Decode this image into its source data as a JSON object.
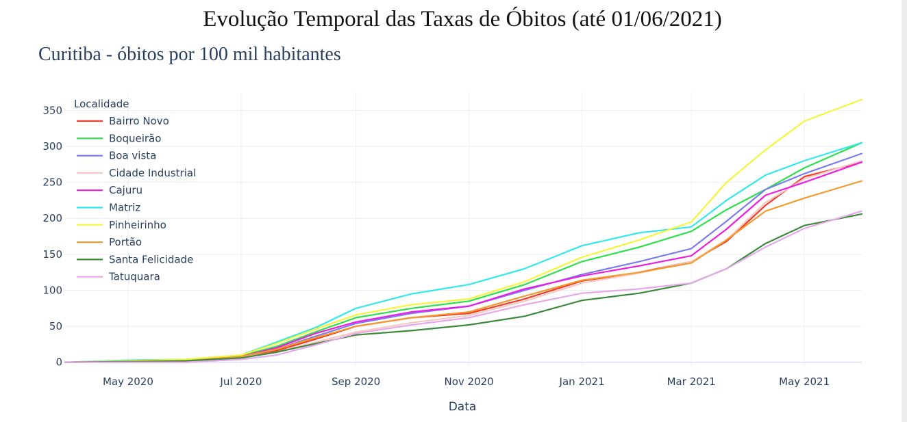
{
  "page": {
    "title": "Evolução Temporal das Taxas de Óbitos (até 01/06/2021)"
  },
  "chart_data": {
    "type": "line",
    "title": "Curitiba - óbitos por 100 mil habitantes",
    "xlabel": "Data",
    "ylabel": "",
    "x_range": [
      "2020-03-28",
      "2021-06-01"
    ],
    "ylim": [
      -5,
      375
    ],
    "x_ticks": [
      {
        "date": "2020-05-01",
        "label": "May 2020"
      },
      {
        "date": "2020-07-01",
        "label": "Jul 2020"
      },
      {
        "date": "2020-09-01",
        "label": "Sep 2020"
      },
      {
        "date": "2020-11-01",
        "label": "Nov 2020"
      },
      {
        "date": "2021-01-01",
        "label": "Jan 2021"
      },
      {
        "date": "2021-03-01",
        "label": "Mar 2021"
      },
      {
        "date": "2021-05-01",
        "label": "May 2021"
      }
    ],
    "y_ticks": [
      0,
      50,
      100,
      150,
      200,
      250,
      300,
      350
    ],
    "grid": true,
    "legend": {
      "title": "Localidade",
      "position": "top-left"
    },
    "x": [
      "2020-03-28",
      "2020-05-01",
      "2020-06-01",
      "2020-07-01",
      "2020-07-20",
      "2020-08-10",
      "2020-09-01",
      "2020-10-01",
      "2020-11-01",
      "2020-12-01",
      "2021-01-01",
      "2021-02-01",
      "2021-03-01",
      "2021-03-20",
      "2021-04-10",
      "2021-05-01",
      "2021-06-01"
    ],
    "series": [
      {
        "name": "Bairro Novo",
        "color": "#f23a2c",
        "values": [
          0,
          1,
          2,
          8,
          16,
          32,
          50,
          62,
          68,
          88,
          113,
          125,
          140,
          168,
          218,
          258,
          278
        ]
      },
      {
        "name": "Boqueirão",
        "color": "#2be04a",
        "values": [
          0,
          1,
          2,
          9,
          22,
          42,
          62,
          75,
          85,
          108,
          140,
          160,
          182,
          212,
          240,
          270,
          305
        ]
      },
      {
        "name": "Boa vista",
        "color": "#7b7bf0",
        "values": [
          0,
          1,
          2,
          8,
          18,
          36,
          54,
          68,
          78,
          100,
          122,
          140,
          158,
          196,
          240,
          262,
          290
        ]
      },
      {
        "name": "Cidade Industrial",
        "color": "#f8c9c0",
        "values": [
          0,
          1,
          2,
          7,
          14,
          28,
          42,
          55,
          65,
          85,
          110,
          124,
          140,
          170,
          222,
          255,
          280
        ]
      },
      {
        "name": "Cajuru",
        "color": "#ee1ce0",
        "values": [
          0,
          1,
          2,
          8,
          20,
          40,
          56,
          70,
          78,
          102,
          120,
          134,
          148,
          185,
          232,
          250,
          278
        ]
      },
      {
        "name": "Matriz",
        "color": "#33e8ea",
        "values": [
          0,
          3,
          4,
          10,
          28,
          48,
          75,
          95,
          108,
          130,
          162,
          180,
          188,
          225,
          260,
          280,
          305
        ]
      },
      {
        "name": "Pinheirinho",
        "color": "#f5f53a",
        "values": [
          0,
          2,
          4,
          10,
          26,
          46,
          66,
          80,
          88,
          112,
          146,
          170,
          195,
          250,
          295,
          335,
          365
        ]
      },
      {
        "name": "Portão",
        "color": "#f29a2c",
        "values": [
          0,
          1,
          2,
          8,
          18,
          34,
          50,
          62,
          70,
          92,
          114,
          125,
          138,
          170,
          210,
          228,
          252
        ]
      },
      {
        "name": "Santa Felicidade",
        "color": "#3a8a3a",
        "values": [
          0,
          1,
          2,
          6,
          14,
          26,
          38,
          44,
          52,
          64,
          86,
          96,
          110,
          130,
          165,
          190,
          206
        ]
      },
      {
        "name": "Tatuquara",
        "color": "#e6a8ea",
        "values": [
          0,
          0,
          0,
          4,
          10,
          24,
          40,
          52,
          62,
          80,
          96,
          102,
          110,
          130,
          160,
          186,
          210
        ]
      }
    ]
  }
}
